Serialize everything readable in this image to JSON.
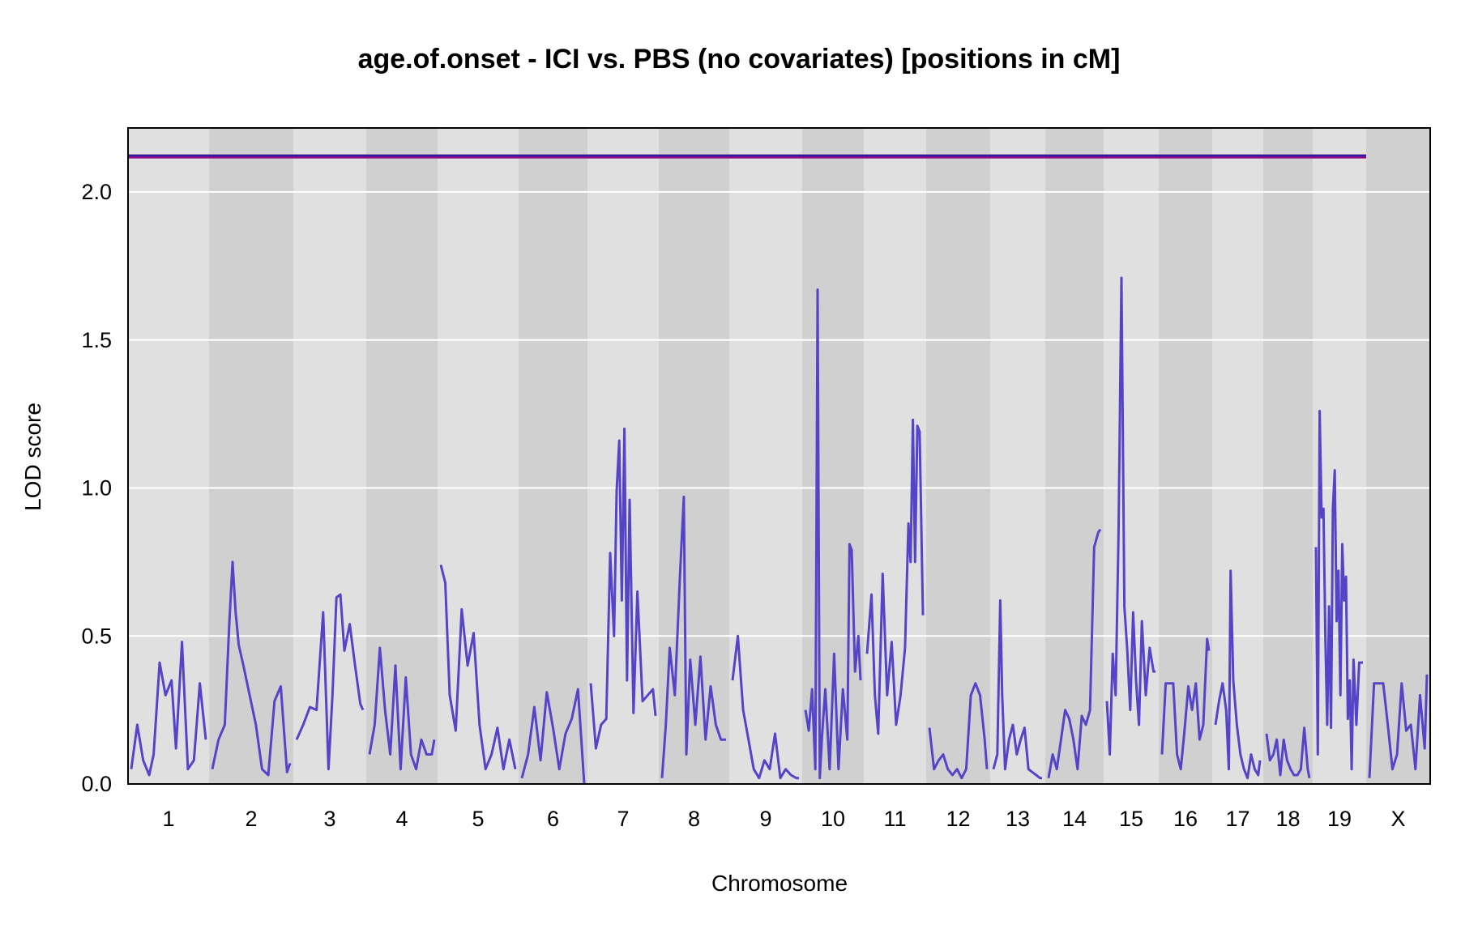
{
  "chart_data": {
    "type": "line",
    "title": "age.of.onset - ICI vs. PBS (no covariates) [positions in cM]",
    "xlabel": "Chromosome",
    "ylabel": "LOD score",
    "ylim": [
      0,
      2.2
    ],
    "yticks": [
      "0.0",
      "0.5",
      "1.0",
      "1.5",
      "2.0"
    ],
    "grid": true,
    "background": "alternating grey bands per chromosome",
    "colors": {
      "lod_line": "#5544c8",
      "threshold_outer": "#8a0a8a",
      "threshold_inner": "#2020a0",
      "band_light": "#e0e0e0",
      "band_dark": "#d0d0d0",
      "gridline": "#ffffff"
    },
    "threshold": 2.12,
    "chromosomes": [
      {
        "name": "1",
        "x": [
          0,
          8,
          16,
          24,
          30,
          38,
          46,
          54,
          60,
          68,
          76,
          84,
          92,
          100
        ],
        "y": [
          0.05,
          0.2,
          0.08,
          0.03,
          0.1,
          0.41,
          0.3,
          0.35,
          0.12,
          0.48,
          0.05,
          0.08,
          0.34,
          0.15
        ]
      },
      {
        "name": "2",
        "x": [
          0,
          8,
          16,
          22,
          26,
          30,
          34,
          40,
          48,
          56,
          64,
          72,
          80,
          88,
          96,
          100
        ],
        "y": [
          0.05,
          0.15,
          0.2,
          0.55,
          0.75,
          0.58,
          0.47,
          0.4,
          0.3,
          0.2,
          0.05,
          0.03,
          0.28,
          0.33,
          0.04,
          0.07
        ]
      },
      {
        "name": "3",
        "x": [
          0,
          10,
          20,
          30,
          40,
          48,
          54,
          60,
          66,
          72,
          80,
          88,
          96,
          100
        ],
        "y": [
          0.15,
          0.2,
          0.26,
          0.25,
          0.58,
          0.05,
          0.3,
          0.63,
          0.64,
          0.45,
          0.54,
          0.4,
          0.27,
          0.25
        ]
      },
      {
        "name": "4",
        "x": [
          0,
          8,
          16,
          24,
          32,
          40,
          48,
          56,
          64,
          72,
          80,
          88,
          96,
          100
        ],
        "y": [
          0.1,
          0.2,
          0.46,
          0.25,
          0.1,
          0.4,
          0.05,
          0.36,
          0.1,
          0.05,
          0.15,
          0.1,
          0.1,
          0.15
        ]
      },
      {
        "name": "5",
        "x": [
          0,
          6,
          12,
          20,
          28,
          36,
          44,
          52,
          60,
          68,
          76,
          84,
          92,
          100
        ],
        "y": [
          0.74,
          0.68,
          0.3,
          0.18,
          0.59,
          0.4,
          0.51,
          0.2,
          0.05,
          0.1,
          0.19,
          0.05,
          0.15,
          0.05
        ]
      },
      {
        "name": "6",
        "x": [
          0,
          10,
          20,
          30,
          40,
          50,
          60,
          70,
          80,
          90,
          100
        ],
        "y": [
          0.02,
          0.1,
          0.26,
          0.08,
          0.31,
          0.19,
          0.05,
          0.17,
          0.22,
          0.32,
          0.0
        ]
      },
      {
        "name": "7",
        "x": [
          0,
          8,
          16,
          24,
          30,
          36,
          40,
          44,
          48,
          52,
          56,
          60,
          66,
          72,
          80,
          88,
          96,
          100
        ],
        "y": [
          0.34,
          0.12,
          0.2,
          0.22,
          0.78,
          0.5,
          0.99,
          1.16,
          0.62,
          1.2,
          0.35,
          0.96,
          0.24,
          0.65,
          0.28,
          0.3,
          0.32,
          0.23
        ]
      },
      {
        "name": "8",
        "x": [
          0,
          6,
          12,
          20,
          28,
          34,
          38,
          44,
          52,
          60,
          68,
          76,
          84,
          92,
          100
        ],
        "y": [
          0.02,
          0.2,
          0.46,
          0.3,
          0.7,
          0.97,
          0.1,
          0.42,
          0.2,
          0.43,
          0.15,
          0.33,
          0.2,
          0.15,
          0.15
        ]
      },
      {
        "name": "9",
        "x": [
          0,
          8,
          16,
          24,
          32,
          40,
          48,
          56,
          64,
          72,
          80,
          88,
          96,
          100
        ],
        "y": [
          0.35,
          0.5,
          0.25,
          0.15,
          0.05,
          0.02,
          0.08,
          0.05,
          0.17,
          0.02,
          0.05,
          0.03,
          0.02,
          0.02
        ]
      },
      {
        "name": "10",
        "x": [
          0,
          6,
          12,
          18,
          22,
          26,
          30,
          36,
          44,
          52,
          60,
          68,
          76,
          80,
          84,
          90,
          96,
          100
        ],
        "y": [
          0.25,
          0.18,
          0.32,
          0.05,
          1.67,
          0.02,
          0.16,
          0.32,
          0.05,
          0.44,
          0.05,
          0.32,
          0.15,
          0.81,
          0.79,
          0.38,
          0.5,
          0.35
        ]
      },
      {
        "name": "11",
        "x": [
          0,
          8,
          14,
          20,
          28,
          36,
          44,
          52,
          60,
          68,
          74,
          78,
          82,
          86,
          90,
          94,
          100
        ],
        "y": [
          0.44,
          0.64,
          0.3,
          0.17,
          0.71,
          0.3,
          0.48,
          0.2,
          0.3,
          0.46,
          0.88,
          0.75,
          1.23,
          0.75,
          1.21,
          1.19,
          0.57
        ]
      },
      {
        "name": "12",
        "x": [
          0,
          8,
          16,
          24,
          32,
          40,
          48,
          56,
          64,
          72,
          80,
          88,
          96,
          100
        ],
        "y": [
          0.19,
          0.05,
          0.08,
          0.1,
          0.05,
          0.03,
          0.05,
          0.02,
          0.05,
          0.3,
          0.34,
          0.3,
          0.15,
          0.05
        ]
      },
      {
        "name": "13",
        "x": [
          0,
          8,
          14,
          18,
          24,
          32,
          40,
          48,
          56,
          64,
          72,
          80,
          88,
          96,
          100
        ],
        "y": [
          0.05,
          0.1,
          0.62,
          0.3,
          0.05,
          0.15,
          0.2,
          0.1,
          0.15,
          0.19,
          0.05,
          0.04,
          0.03,
          0.02,
          0.02
        ]
      },
      {
        "name": "14",
        "x": [
          0,
          8,
          16,
          24,
          32,
          40,
          48,
          56,
          64,
          72,
          80,
          88,
          96,
          100
        ],
        "y": [
          0.02,
          0.1,
          0.05,
          0.15,
          0.25,
          0.22,
          0.15,
          0.05,
          0.23,
          0.2,
          0.25,
          0.8,
          0.85,
          0.86
        ]
      },
      {
        "name": "15",
        "x": [
          0,
          6,
          12,
          18,
          24,
          30,
          36,
          42,
          48,
          54,
          60,
          66,
          72,
          80,
          88,
          96,
          100
        ],
        "y": [
          0.28,
          0.1,
          0.44,
          0.3,
          0.85,
          1.71,
          0.6,
          0.45,
          0.25,
          0.58,
          0.35,
          0.2,
          0.55,
          0.3,
          0.46,
          0.38,
          0.38
        ]
      },
      {
        "name": "16",
        "x": [
          0,
          8,
          16,
          24,
          32,
          40,
          48,
          56,
          64,
          72,
          80,
          88,
          96,
          100
        ],
        "y": [
          0.1,
          0.34,
          0.34,
          0.34,
          0.1,
          0.05,
          0.18,
          0.33,
          0.25,
          0.34,
          0.15,
          0.2,
          0.49,
          0.45
        ]
      },
      {
        "name": "17",
        "x": [
          0,
          8,
          16,
          24,
          30,
          34,
          40,
          48,
          56,
          64,
          72,
          80,
          88,
          96,
          100
        ],
        "y": [
          0.2,
          0.28,
          0.34,
          0.25,
          0.05,
          0.72,
          0.35,
          0.2,
          0.1,
          0.05,
          0.02,
          0.1,
          0.05,
          0.03,
          0.08
        ]
      },
      {
        "name": "18",
        "x": [
          0,
          8,
          16,
          24,
          32,
          40,
          48,
          56,
          64,
          72,
          80,
          88,
          96,
          100
        ],
        "y": [
          0.17,
          0.08,
          0.1,
          0.15,
          0.03,
          0.15,
          0.08,
          0.05,
          0.03,
          0.03,
          0.05,
          0.19,
          0.05,
          0.02
        ]
      },
      {
        "name": "19",
        "x": [
          0,
          4,
          8,
          12,
          16,
          20,
          24,
          28,
          32,
          36,
          40,
          44,
          48,
          52,
          56,
          60,
          64,
          68,
          72,
          76,
          80,
          86,
          92,
          100
        ],
        "y": [
          0.8,
          0.1,
          1.26,
          0.9,
          0.93,
          0.5,
          0.2,
          0.6,
          0.19,
          0.93,
          1.06,
          0.55,
          0.72,
          0.3,
          0.81,
          0.62,
          0.7,
          0.22,
          0.35,
          0.05,
          0.42,
          0.2,
          0.41,
          0.41
        ]
      },
      {
        "name": "X",
        "x": [
          0,
          8,
          16,
          24,
          32,
          40,
          48,
          56,
          64,
          72,
          80,
          88,
          96,
          100
        ],
        "y": [
          0.02,
          0.34,
          0.34,
          0.34,
          0.2,
          0.05,
          0.1,
          0.34,
          0.18,
          0.2,
          0.05,
          0.3,
          0.12,
          0.37
        ]
      }
    ]
  }
}
